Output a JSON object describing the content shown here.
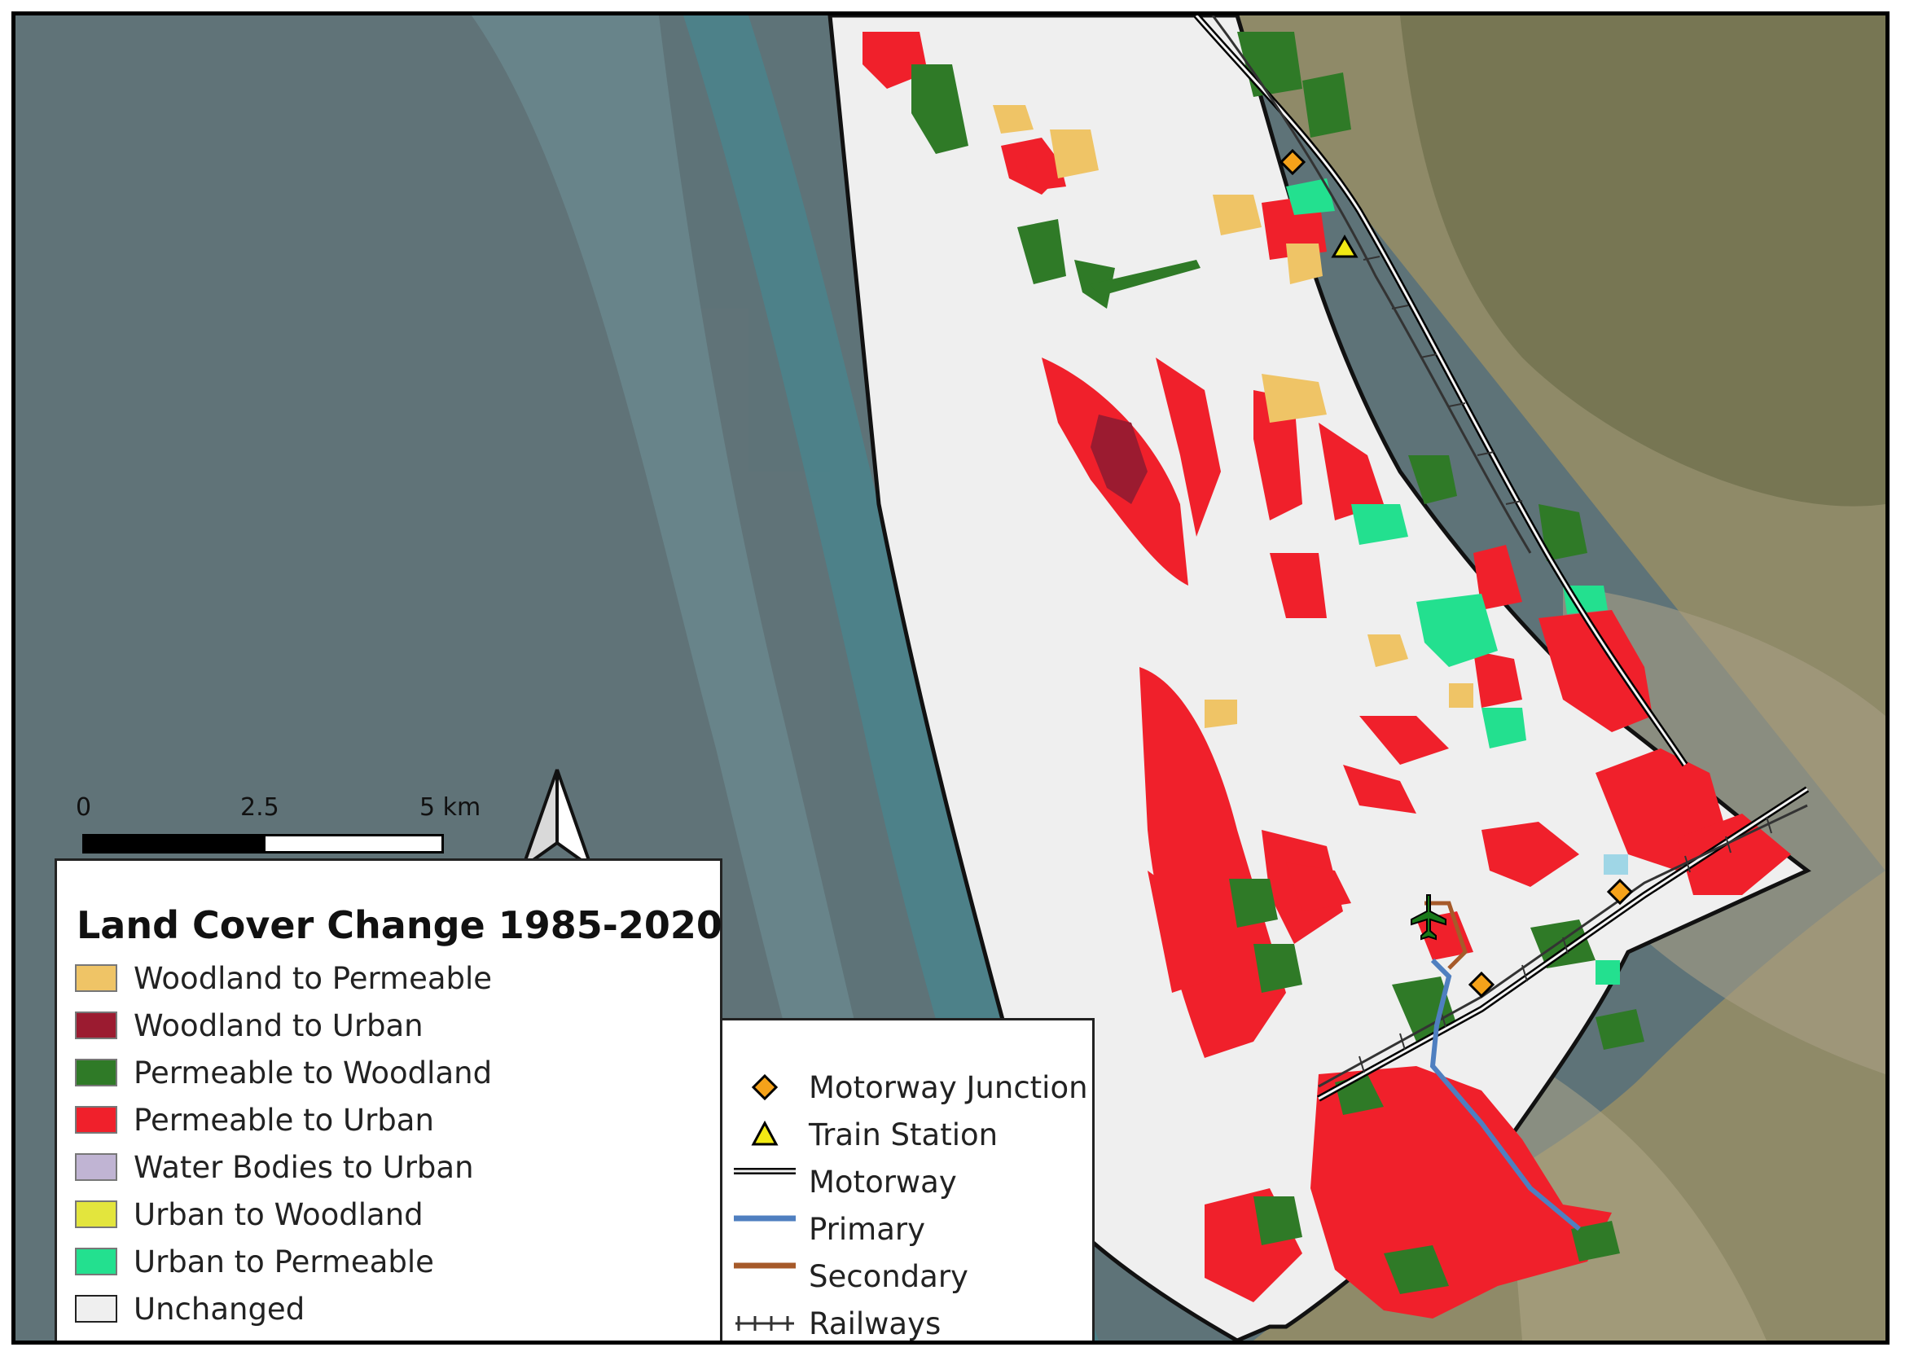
{
  "legend": {
    "title": "Land Cover Change 1985-2020",
    "items": [
      {
        "label": "Woodland to Permeable",
        "color": "#efc466"
      },
      {
        "label": "Woodland to Urban",
        "color": "#9b1b30"
      },
      {
        "label": "Permeable to Woodland",
        "color": "#2f7a27"
      },
      {
        "label": "Permeable to Urban",
        "color": "#f0202b"
      },
      {
        "label": "Water Bodies to Urban",
        "color": "#c0b4d3"
      },
      {
        "label": "Urban to Woodland",
        "color": "#e3e53d"
      },
      {
        "label": "Urban to Permeable",
        "color": "#23e08f"
      },
      {
        "label": "Unchanged",
        "color": "#efefef"
      }
    ]
  },
  "infrastructure_legend": {
    "items": [
      {
        "label": "Motorway Junction",
        "icon": "diamond-icon",
        "color": "#f5a21a"
      },
      {
        "label": "Train Station",
        "icon": "triangle-icon",
        "color": "#f2ea14"
      },
      {
        "label": "Motorway",
        "icon": "double-line-icon",
        "color": "#000000"
      },
      {
        "label": "Primary",
        "icon": "line-icon",
        "color": "#4f7fc0"
      },
      {
        "label": "Secondary",
        "icon": "line-icon",
        "color": "#a65a2a"
      },
      {
        "label": "Railways",
        "icon": "railway-icon",
        "color": "#333333"
      }
    ]
  },
  "scale_bar": {
    "labels": [
      "0",
      "2.5",
      "5 km"
    ]
  },
  "north_arrow": {
    "icon": "north-arrow-icon"
  },
  "map": {
    "icons": [
      "airport-icon"
    ]
  }
}
